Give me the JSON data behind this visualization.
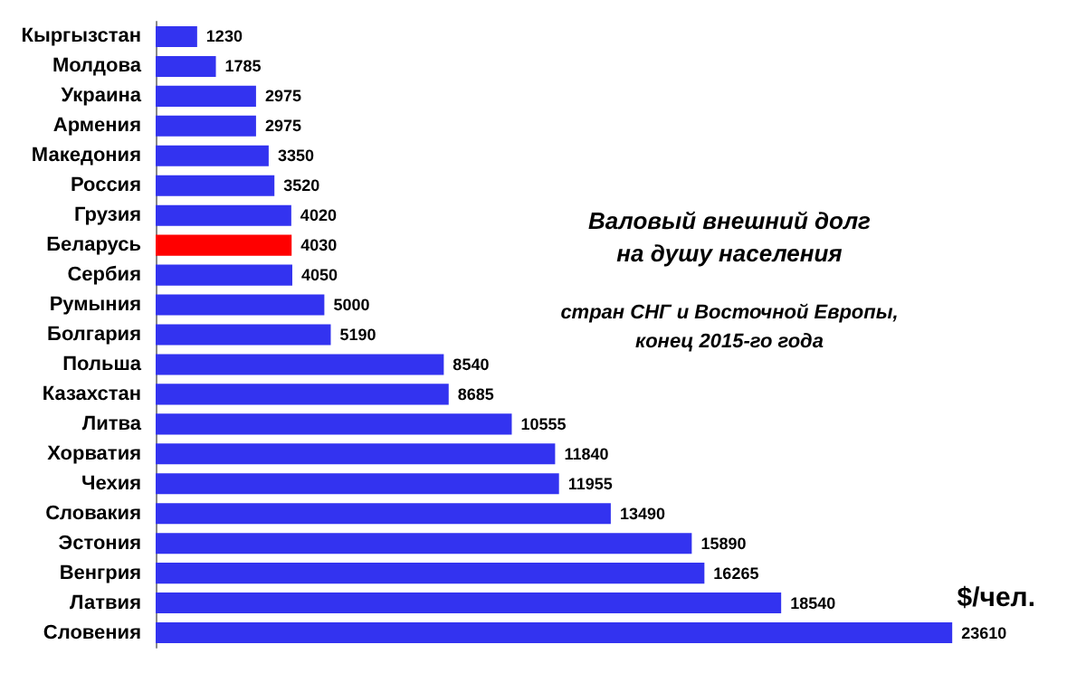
{
  "chart_data": {
    "type": "bar",
    "orientation": "horizontal",
    "title": "Валовый внешний долг\nна душу населения",
    "subtitle": "стран СНГ и Восточной Европы,\nконец 2015-го года",
    "categories": [
      "Кыргызстан",
      "Молдова",
      "Украина",
      "Армения",
      "Македония",
      "Россия",
      "Грузия",
      "Беларусь",
      "Сербия",
      "Румыния",
      "Болгария",
      "Польша",
      "Казахстан",
      "Литва",
      "Хорватия",
      "Чехия",
      "Словакия",
      "Эстония",
      "Венгрия",
      "Латвия",
      "Словения"
    ],
    "values": [
      1230,
      1785,
      2975,
      2975,
      3350,
      3520,
      4020,
      4030,
      4050,
      5000,
      5190,
      8540,
      8685,
      10555,
      11840,
      11955,
      13490,
      15890,
      16265,
      18540,
      23610
    ],
    "colors": [
      "#3333f0",
      "#3333f0",
      "#3333f0",
      "#3333f0",
      "#3333f0",
      "#3333f0",
      "#3333f0",
      "#ff0000",
      "#3333f0",
      "#3333f0",
      "#3333f0",
      "#3333f0",
      "#3333f0",
      "#3333f0",
      "#3333f0",
      "#3333f0",
      "#3333f0",
      "#3333f0",
      "#3333f0",
      "#3333f0",
      "#3333f0"
    ],
    "data_labels": true,
    "annotations": [
      "$/чел."
    ]
  }
}
